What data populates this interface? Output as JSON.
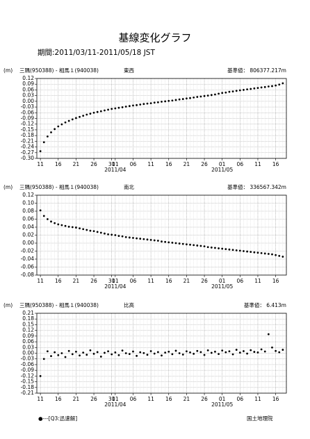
{
  "header": {
    "title": "基線変化グラフ",
    "subtitle": "期間:2011/03/11-2011/05/18 JST"
  },
  "footer": {
    "legend": "●---[Q3:迅速解]",
    "credit": "国土地理院"
  },
  "chart_data": [
    {
      "type": "scatter",
      "unit": "(m)",
      "baseline": "三隅(950388) - 相馬１(940038)",
      "component": "東西",
      "reference": "基準値： 806377.217m",
      "color": "#000000",
      "grid": true,
      "xlim": [
        "2011-03-10",
        "2011-05-19"
      ],
      "ylim": [
        -0.3,
        0.12
      ],
      "yticks": [
        0.12,
        0.09,
        0.06,
        0.03,
        {
          "value": 0,
          "label": "0.00"
        },
        -0.03,
        -0.06,
        -0.09,
        -0.12,
        -0.15,
        -0.18,
        -0.21,
        -0.24,
        -0.27,
        {
          "value": -0.3,
          "label": "-0.30"
        }
      ],
      "xticks": [
        {
          "value": "2011-03-11",
          "label": "11"
        },
        {
          "value": "2011-03-16",
          "label": "16"
        },
        {
          "value": "2011-03-21",
          "label": "21"
        },
        {
          "value": "2011-03-26",
          "label": "26"
        },
        {
          "value": "2011-03-31",
          "label": "31"
        },
        {
          "value": "2011-04-01",
          "label": "01"
        },
        {
          "value": "2011-04-06",
          "label": "06"
        },
        {
          "value": "2011-04-11",
          "label": "11"
        },
        {
          "value": "2011-04-16",
          "label": "16"
        },
        {
          "value": "2011-04-21",
          "label": "21"
        },
        {
          "value": "2011-04-26",
          "label": "26"
        },
        {
          "value": "2011-05-01",
          "label": "01"
        },
        {
          "value": "2011-05-06",
          "label": "06"
        },
        {
          "value": "2011-05-11",
          "label": "11"
        },
        {
          "value": "2011-05-16",
          "label": "16"
        }
      ],
      "month_ticks": [
        {
          "value": "2011-04-01",
          "label": "2011/04"
        },
        {
          "value": "2011-05-01",
          "label": "2011/05"
        }
      ],
      "x": [
        "2011-03-11",
        "2011-03-12",
        "2011-03-13",
        "2011-03-14",
        "2011-03-15",
        "2011-03-16",
        "2011-03-17",
        "2011-03-18",
        "2011-03-19",
        "2011-03-20",
        "2011-03-21",
        "2011-03-22",
        "2011-03-23",
        "2011-03-24",
        "2011-03-25",
        "2011-03-26",
        "2011-03-27",
        "2011-03-28",
        "2011-03-29",
        "2011-03-30",
        "2011-03-31",
        "2011-04-01",
        "2011-04-02",
        "2011-04-03",
        "2011-04-04",
        "2011-04-05",
        "2011-04-06",
        "2011-04-07",
        "2011-04-08",
        "2011-04-09",
        "2011-04-10",
        "2011-04-11",
        "2011-04-12",
        "2011-04-13",
        "2011-04-14",
        "2011-04-15",
        "2011-04-16",
        "2011-04-17",
        "2011-04-18",
        "2011-04-19",
        "2011-04-20",
        "2011-04-21",
        "2011-04-22",
        "2011-04-23",
        "2011-04-24",
        "2011-04-25",
        "2011-04-26",
        "2011-04-27",
        "2011-04-28",
        "2011-04-29",
        "2011-04-30",
        "2011-05-01",
        "2011-05-02",
        "2011-05-03",
        "2011-05-04",
        "2011-05-05",
        "2011-05-06",
        "2011-05-07",
        "2011-05-08",
        "2011-05-09",
        "2011-05-10",
        "2011-05-11",
        "2011-05-12",
        "2011-05-13",
        "2011-05-14",
        "2011-05-15",
        "2011-05-16",
        "2011-05-17",
        "2011-05-18"
      ],
      "values": [
        -0.262,
        -0.215,
        -0.185,
        -0.163,
        -0.146,
        -0.132,
        -0.121,
        -0.111,
        -0.103,
        -0.095,
        -0.088,
        -0.082,
        -0.076,
        -0.07,
        -0.065,
        -0.06,
        -0.056,
        -0.052,
        -0.048,
        -0.044,
        -0.04,
        -0.037,
        -0.034,
        -0.031,
        -0.028,
        -0.025,
        -0.022,
        -0.02,
        -0.017,
        -0.014,
        -0.012,
        -0.01,
        -0.007,
        -0.005,
        -0.002,
        0.0,
        0.002,
        0.004,
        0.007,
        0.01,
        0.012,
        0.015,
        0.017,
        0.02,
        0.023,
        0.025,
        0.028,
        0.03,
        0.033,
        0.036,
        0.04,
        0.044,
        0.046,
        0.05,
        0.052,
        0.055,
        0.058,
        0.06,
        0.063,
        0.065,
        0.068,
        0.07,
        0.073,
        0.075,
        0.078,
        0.08,
        0.083,
        0.088,
        0.095
      ]
    },
    {
      "type": "scatter",
      "unit": "(m)",
      "baseline": "三隅(950388) - 相馬１(940038)",
      "component": "南北",
      "reference": "基準値： 336567.342m",
      "color": "#000000",
      "grid": true,
      "xlim": [
        "2011-03-10",
        "2011-05-19"
      ],
      "ylim": [
        -0.08,
        0.12
      ],
      "yticks": [
        0.12,
        {
          "value": 0.1,
          "label": "0.10"
        },
        0.08,
        0.06,
        0.04,
        0.02,
        {
          "value": 0,
          "label": "0.00"
        },
        -0.02,
        -0.04,
        -0.06,
        -0.08
      ],
      "xticks": [
        {
          "value": "2011-03-11",
          "label": "11"
        },
        {
          "value": "2011-03-16",
          "label": "16"
        },
        {
          "value": "2011-03-21",
          "label": "21"
        },
        {
          "value": "2011-03-26",
          "label": "26"
        },
        {
          "value": "2011-03-31",
          "label": "31"
        },
        {
          "value": "2011-04-01",
          "label": "01"
        },
        {
          "value": "2011-04-06",
          "label": "06"
        },
        {
          "value": "2011-04-11",
          "label": "11"
        },
        {
          "value": "2011-04-16",
          "label": "16"
        },
        {
          "value": "2011-04-21",
          "label": "21"
        },
        {
          "value": "2011-04-26",
          "label": "26"
        },
        {
          "value": "2011-05-01",
          "label": "01"
        },
        {
          "value": "2011-05-06",
          "label": "06"
        },
        {
          "value": "2011-05-11",
          "label": "11"
        },
        {
          "value": "2011-05-16",
          "label": "16"
        }
      ],
      "month_ticks": [
        {
          "value": "2011-04-01",
          "label": "2011/04"
        },
        {
          "value": "2011-05-01",
          "label": "2011/05"
        }
      ],
      "x": [
        "2011-03-11",
        "2011-03-12",
        "2011-03-13",
        "2011-03-14",
        "2011-03-15",
        "2011-03-16",
        "2011-03-17",
        "2011-03-18",
        "2011-03-19",
        "2011-03-20",
        "2011-03-21",
        "2011-03-22",
        "2011-03-23",
        "2011-03-24",
        "2011-03-25",
        "2011-03-26",
        "2011-03-27",
        "2011-03-28",
        "2011-03-29",
        "2011-03-30",
        "2011-03-31",
        "2011-04-01",
        "2011-04-02",
        "2011-04-03",
        "2011-04-04",
        "2011-04-05",
        "2011-04-06",
        "2011-04-07",
        "2011-04-08",
        "2011-04-09",
        "2011-04-10",
        "2011-04-11",
        "2011-04-12",
        "2011-04-13",
        "2011-04-14",
        "2011-04-15",
        "2011-04-16",
        "2011-04-17",
        "2011-04-18",
        "2011-04-19",
        "2011-04-20",
        "2011-04-21",
        "2011-04-22",
        "2011-04-23",
        "2011-04-24",
        "2011-04-25",
        "2011-04-26",
        "2011-04-27",
        "2011-04-28",
        "2011-04-29",
        "2011-04-30",
        "2011-05-01",
        "2011-05-02",
        "2011-05-03",
        "2011-05-04",
        "2011-05-05",
        "2011-05-06",
        "2011-05-07",
        "2011-05-08",
        "2011-05-09",
        "2011-05-10",
        "2011-05-11",
        "2011-05-12",
        "2011-05-13",
        "2011-05-14",
        "2011-05-15",
        "2011-05-16",
        "2011-05-17",
        "2011-05-18"
      ],
      "values": [
        0.082,
        0.068,
        0.06,
        0.054,
        0.05,
        0.047,
        0.045,
        0.043,
        0.041,
        0.04,
        0.039,
        0.037,
        0.035,
        0.033,
        0.031,
        0.03,
        0.028,
        0.026,
        0.024,
        0.022,
        0.021,
        0.02,
        0.018,
        0.017,
        0.015,
        0.014,
        0.013,
        0.012,
        0.011,
        0.01,
        0.009,
        0.008,
        0.007,
        0.006,
        0.004,
        0.003,
        0.002,
        0.001,
        0.0,
        -0.001,
        -0.002,
        -0.003,
        -0.004,
        -0.005,
        -0.006,
        -0.007,
        -0.008,
        -0.01,
        -0.011,
        -0.012,
        -0.013,
        -0.014,
        -0.015,
        -0.016,
        -0.017,
        -0.018,
        -0.019,
        -0.02,
        -0.021,
        -0.022,
        -0.023,
        -0.024,
        -0.025,
        -0.026,
        -0.027,
        -0.028,
        -0.03,
        -0.032,
        -0.034
      ]
    },
    {
      "type": "scatter",
      "unit": "(m)",
      "baseline": "三隅(950388) - 相馬１(940038)",
      "component": "比高",
      "reference": "基準値： 6.413m",
      "color": "#000000",
      "grid": true,
      "xlim": [
        "2011-03-10",
        "2011-05-19"
      ],
      "ylim": [
        -0.21,
        0.21
      ],
      "yticks": [
        0.21,
        0.18,
        0.15,
        0.12,
        0.09,
        0.06,
        0.03,
        {
          "value": 0,
          "label": "0.00"
        },
        -0.03,
        -0.06,
        -0.09,
        -0.12,
        -0.15,
        -0.18,
        -0.21
      ],
      "xticks": [
        {
          "value": "2011-03-11",
          "label": "11"
        },
        {
          "value": "2011-03-16",
          "label": "16"
        },
        {
          "value": "2011-03-21",
          "label": "21"
        },
        {
          "value": "2011-03-26",
          "label": "26"
        },
        {
          "value": "2011-03-31",
          "label": "31"
        },
        {
          "value": "2011-04-01",
          "label": "01"
        },
        {
          "value": "2011-04-06",
          "label": "06"
        },
        {
          "value": "2011-04-11",
          "label": "11"
        },
        {
          "value": "2011-04-16",
          "label": "16"
        },
        {
          "value": "2011-04-21",
          "label": "21"
        },
        {
          "value": "2011-04-26",
          "label": "26"
        },
        {
          "value": "2011-05-01",
          "label": "01"
        },
        {
          "value": "2011-05-06",
          "label": "06"
        },
        {
          "value": "2011-05-11",
          "label": "11"
        },
        {
          "value": "2011-05-16",
          "label": "16"
        }
      ],
      "month_ticks": [
        {
          "value": "2011-04-01",
          "label": "2011/04"
        },
        {
          "value": "2011-05-01",
          "label": "2011/05"
        }
      ],
      "x": [
        "2011-03-11",
        "2011-03-12",
        "2011-03-13",
        "2011-03-14",
        "2011-03-15",
        "2011-03-16",
        "2011-03-17",
        "2011-03-18",
        "2011-03-19",
        "2011-03-20",
        "2011-03-21",
        "2011-03-22",
        "2011-03-23",
        "2011-03-24",
        "2011-03-25",
        "2011-03-26",
        "2011-03-27",
        "2011-03-28",
        "2011-03-29",
        "2011-03-30",
        "2011-03-31",
        "2011-04-01",
        "2011-04-02",
        "2011-04-03",
        "2011-04-04",
        "2011-04-05",
        "2011-04-06",
        "2011-04-07",
        "2011-04-08",
        "2011-04-09",
        "2011-04-10",
        "2011-04-11",
        "2011-04-12",
        "2011-04-13",
        "2011-04-14",
        "2011-04-15",
        "2011-04-16",
        "2011-04-17",
        "2011-04-18",
        "2011-04-19",
        "2011-04-20",
        "2011-04-21",
        "2011-04-22",
        "2011-04-23",
        "2011-04-24",
        "2011-04-25",
        "2011-04-26",
        "2011-04-27",
        "2011-04-28",
        "2011-04-29",
        "2011-04-30",
        "2011-05-01",
        "2011-05-02",
        "2011-05-03",
        "2011-05-04",
        "2011-05-05",
        "2011-05-06",
        "2011-05-07",
        "2011-05-08",
        "2011-05-09",
        "2011-05-10",
        "2011-05-11",
        "2011-05-12",
        "2011-05-13",
        "2011-05-14",
        "2011-05-15",
        "2011-05-16",
        "2011-05-17",
        "2011-05-18"
      ],
      "values": [
        -0.12,
        -0.03,
        0.01,
        -0.015,
        0.005,
        -0.01,
        0.0,
        -0.02,
        0.012,
        -0.005,
        0.008,
        -0.012,
        0.003,
        -0.008,
        0.015,
        -0.003,
        0.006,
        -0.018,
        0.002,
        0.01,
        -0.006,
        0.004,
        -0.01,
        0.014,
        0.0,
        -0.004,
        0.009,
        -0.014,
        0.005,
        0.001,
        -0.008,
        0.011,
        -0.002,
        0.006,
        -0.012,
        0.003,
        0.008,
        -0.005,
        0.013,
        0.0,
        -0.007,
        0.01,
        0.004,
        -0.003,
        0.012,
        0.006,
        -0.009,
        0.015,
        0.002,
        0.008,
        -0.004,
        0.014,
        0.005,
        0.01,
        -0.006,
        0.018,
        0.003,
        0.011,
        -0.002,
        0.016,
        0.007,
        0.004,
        0.02,
        0.009,
        0.1,
        0.03,
        0.012,
        0.005,
        0.018
      ]
    }
  ]
}
